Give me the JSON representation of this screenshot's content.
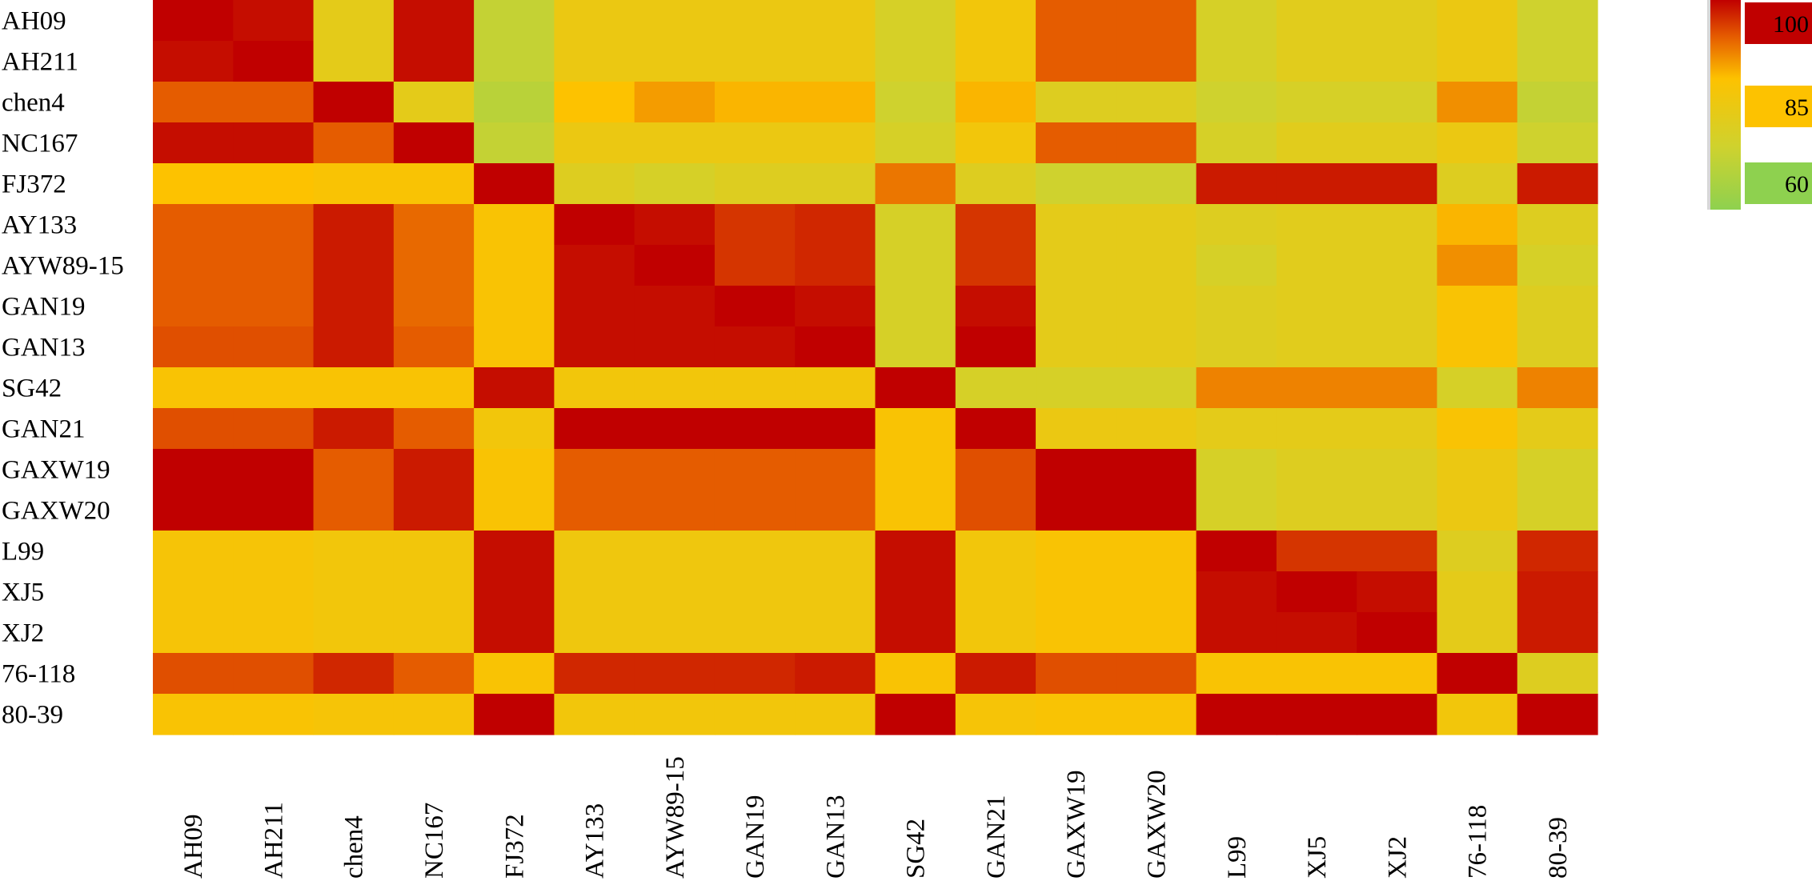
{
  "chart_data": {
    "type": "heatmap",
    "title": "",
    "xlabel": "",
    "ylabel": "",
    "row_labels": [
      "AH09",
      "AH211",
      "chen4",
      "NC167",
      "FJ372",
      "AY133",
      "AYW89-15",
      "GAN19",
      "GAN13",
      "SG42",
      "GAN21",
      "GAXW19",
      "GAXW20",
      "L99",
      "XJ5",
      "XJ2",
      "76-118",
      "80-39"
    ],
    "column_labels": [
      "AH09",
      "AH211",
      "chen4",
      "NC167",
      "FJ372",
      "AY133",
      "AYW89-15",
      "GAN19",
      "GAN13",
      "SG42",
      "GAN21",
      "GAXW19",
      "GAXW20",
      "L99",
      "XJ5",
      "XJ2",
      "76-118",
      "80-39"
    ],
    "values": [
      [
        100,
        99,
        78,
        99,
        70,
        80,
        80,
        80,
        80,
        74,
        82,
        93,
        93,
        74,
        77,
        77,
        80,
        72
      ],
      [
        99,
        100,
        78,
        99,
        70,
        80,
        80,
        80,
        80,
        74,
        82,
        93,
        93,
        74,
        77,
        77,
        80,
        72
      ],
      [
        93,
        93,
        100,
        78,
        68,
        85,
        88,
        86,
        86,
        72,
        86,
        76,
        76,
        72,
        74,
        74,
        89,
        70
      ],
      [
        99,
        99,
        93,
        100,
        70,
        80,
        80,
        80,
        80,
        74,
        82,
        93,
        93,
        74,
        77,
        77,
        80,
        72
      ],
      [
        85,
        85,
        84,
        84,
        100,
        76,
        74,
        76,
        76,
        91,
        76,
        72,
        72,
        98,
        98,
        98,
        76,
        98
      ],
      [
        93,
        93,
        98,
        92,
        84,
        100,
        99,
        96,
        97,
        74,
        96,
        78,
        78,
        76,
        77,
        77,
        86,
        76
      ],
      [
        93,
        93,
        98,
        92,
        84,
        99,
        100,
        96,
        97,
        74,
        96,
        78,
        78,
        74,
        77,
        77,
        89,
        74
      ],
      [
        93,
        93,
        98,
        92,
        84,
        99,
        99,
        100,
        99,
        74,
        99,
        78,
        78,
        76,
        77,
        77,
        84,
        76
      ],
      [
        94,
        94,
        98,
        93,
        84,
        99,
        99,
        99,
        100,
        74,
        100,
        78,
        78,
        76,
        77,
        77,
        84,
        76
      ],
      [
        84,
        84,
        84,
        84,
        99,
        82,
        82,
        82,
        82,
        100,
        74,
        74,
        74,
        90,
        90,
        90,
        74,
        90
      ],
      [
        94,
        94,
        98,
        93,
        82,
        100,
        100,
        100,
        100,
        84,
        100,
        80,
        80,
        78,
        78,
        78,
        84,
        78
      ],
      [
        100,
        100,
        93,
        98,
        84,
        93,
        93,
        93,
        93,
        84,
        94,
        100,
        100,
        74,
        76,
        76,
        80,
        74
      ],
      [
        100,
        100,
        93,
        98,
        84,
        93,
        93,
        93,
        93,
        84,
        94,
        100,
        100,
        74,
        76,
        76,
        80,
        74
      ],
      [
        83,
        83,
        82,
        82,
        99,
        81,
        81,
        81,
        81,
        99,
        82,
        84,
        84,
        100,
        96,
        96,
        76,
        97
      ],
      [
        83,
        83,
        82,
        82,
        99,
        81,
        81,
        81,
        81,
        99,
        82,
        84,
        84,
        99,
        100,
        99,
        78,
        98
      ],
      [
        83,
        83,
        82,
        82,
        99,
        81,
        81,
        81,
        81,
        99,
        82,
        84,
        84,
        99,
        99,
        100,
        78,
        98
      ],
      [
        94,
        94,
        97,
        93,
        84,
        97,
        97,
        97,
        98,
        84,
        98,
        94,
        94,
        84,
        84,
        84,
        100,
        76
      ],
      [
        84,
        84,
        83,
        83,
        100,
        82,
        82,
        82,
        82,
        100,
        83,
        84,
        84,
        100,
        100,
        100,
        82,
        100
      ]
    ],
    "color_scale": {
      "stops": [
        {
          "value": 60,
          "color": "#8ed14f"
        },
        {
          "value": 72,
          "color": "#cfd22e"
        },
        {
          "value": 85,
          "color": "#fdc200"
        },
        {
          "value": 93,
          "color": "#e55c00"
        },
        {
          "value": 100,
          "color": "#c00000"
        }
      ],
      "legend_labels": [
        "100",
        "85",
        "60"
      ],
      "legend_values": [
        100,
        85,
        60
      ]
    },
    "legend_position": "top-right",
    "grid": false
  }
}
